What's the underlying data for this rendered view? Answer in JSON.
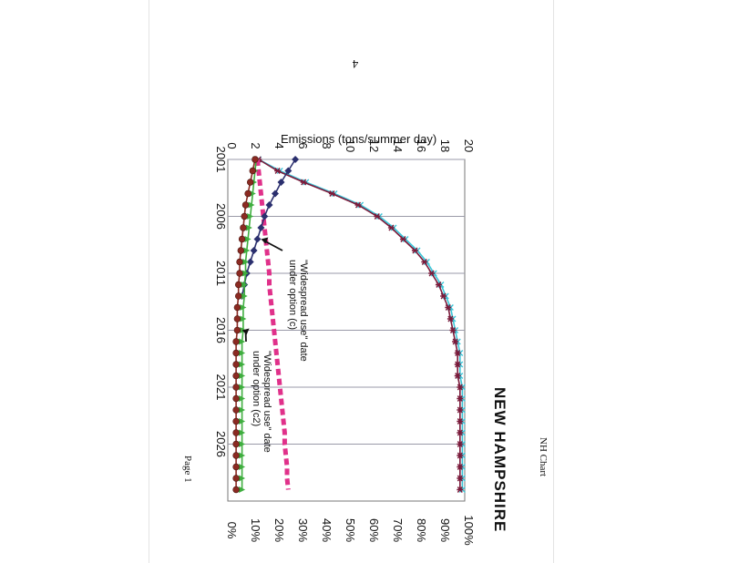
{
  "page": {
    "page_number": "4",
    "header_text": "NH Chart",
    "footer_text": "Page 1"
  },
  "chart_data": {
    "type": "line",
    "title": "NEW HAMPSHIRE",
    "ylabel": "Emissions (tons/summer day)",
    "xlabel": "",
    "x_ticks": [
      "2001",
      "2006",
      "2011",
      "2016",
      "2021",
      "2026"
    ],
    "xlim": [
      2001,
      2031
    ],
    "ylim": [
      0,
      20
    ],
    "y_ticks": [
      "0",
      "2",
      "4",
      "6",
      "8",
      "10",
      "12",
      "14",
      "16",
      "18",
      "20"
    ],
    "y2lim": [
      0,
      100
    ],
    "y2_ticks": [
      "0%",
      "10%",
      "20%",
      "30%",
      "40%",
      "50%",
      "60%",
      "70%",
      "80%",
      "90%",
      "100%"
    ],
    "grid": "vertical lines at x ticks",
    "colors": {
      "penetration_cyan": "#38c6d8",
      "penetration_dark": "#7a1a3a",
      "magenta": "#e0318a",
      "navy": "#2b2f6e",
      "green": "#3fae3f",
      "brown": "#8b2a22"
    },
    "series": [
      {
        "axis": "right",
        "color_key": "penetration_cyan",
        "marker": "x",
        "x": [
          2001,
          2002,
          2003,
          2004,
          2005,
          2006,
          2007,
          2008,
          2009,
          2010,
          2011,
          2012,
          2013,
          2014,
          2015,
          2016,
          2017,
          2018,
          2019,
          2020,
          2021,
          2022,
          2023,
          2024,
          2025,
          2026,
          2027,
          2028,
          2029,
          2030
        ],
        "values": [
          13,
          22,
          33,
          45,
          56,
          64,
          70,
          75,
          80,
          84,
          87,
          90,
          92,
          94,
          95,
          96,
          97,
          98,
          98,
          98,
          99,
          99,
          99,
          99,
          99,
          99,
          99,
          99,
          99,
          99
        ]
      },
      {
        "axis": "right",
        "color_key": "penetration_dark",
        "marker": "asterisk",
        "x": [
          2001,
          2002,
          2003,
          2004,
          2005,
          2006,
          2007,
          2008,
          2009,
          2010,
          2011,
          2012,
          2013,
          2014,
          2015,
          2016,
          2017,
          2018,
          2019,
          2020,
          2021,
          2022,
          2023,
          2024,
          2025,
          2026,
          2027,
          2028,
          2029,
          2030
        ],
        "values": [
          13,
          21,
          32,
          44,
          55,
          63,
          69,
          74,
          79,
          83,
          86,
          89,
          91,
          93,
          94,
          95,
          96,
          97,
          97,
          97,
          98,
          98,
          98,
          98,
          98,
          98,
          98,
          98,
          98,
          98
        ]
      },
      {
        "axis": "left",
        "color_key": "magenta",
        "marker": "square",
        "style": "thick-dashed",
        "x": [
          2001,
          2002,
          2003,
          2004,
          2005,
          2006,
          2007,
          2008,
          2009,
          2010,
          2011,
          2012,
          2013,
          2014,
          2015,
          2016,
          2017,
          2018,
          2019,
          2020,
          2021,
          2022,
          2023,
          2024,
          2025,
          2026,
          2027,
          2028,
          2029,
          2030
        ],
        "values": [
          2.5,
          2.6,
          2.7,
          2.8,
          2.9,
          3.0,
          3.1,
          3.2,
          3.3,
          3.4,
          3.5,
          3.5,
          3.6,
          3.7,
          3.8,
          3.9,
          4.0,
          4.1,
          4.2,
          4.3,
          4.4,
          4.5,
          4.6,
          4.7,
          4.8,
          4.8,
          4.9,
          5.0,
          5.0,
          5.1
        ]
      },
      {
        "axis": "left",
        "color_key": "navy",
        "marker": "diamond",
        "x": [
          2001,
          2002,
          2003,
          2004,
          2005,
          2006,
          2007,
          2008,
          2009,
          2010,
          2011,
          2012,
          2013
        ],
        "values": [
          5.7,
          5.1,
          4.5,
          4.0,
          3.5,
          3.1,
          2.8,
          2.5,
          2.2,
          1.9,
          1.6,
          1.4,
          1.2
        ]
      },
      {
        "axis": "left",
        "color_key": "green",
        "marker": "triangle",
        "x": [
          2001,
          2002,
          2003,
          2004,
          2005,
          2006,
          2007,
          2008,
          2009,
          2010,
          2011,
          2012,
          2013,
          2014,
          2015,
          2016,
          2017,
          2018,
          2019,
          2020,
          2021,
          2022,
          2023,
          2024,
          2025,
          2026,
          2027,
          2028,
          2029,
          2030
        ],
        "values": [
          2.4,
          2.3,
          2.2,
          2.1,
          2.0,
          1.9,
          1.8,
          1.7,
          1.6,
          1.5,
          1.5,
          1.4,
          1.4,
          1.3,
          1.3,
          1.3,
          1.2,
          1.2,
          1.2,
          1.2,
          1.2,
          1.2,
          1.2,
          1.2,
          1.2,
          1.2,
          1.2,
          1.2,
          1.2,
          1.2
        ]
      },
      {
        "axis": "left",
        "color_key": "brown",
        "marker": "circle",
        "x": [
          2001,
          2002,
          2003,
          2004,
          2005,
          2006,
          2007,
          2008,
          2009,
          2010,
          2011,
          2012,
          2013,
          2014,
          2015,
          2016,
          2017,
          2018,
          2019,
          2020,
          2021,
          2022,
          2023,
          2024,
          2025,
          2026,
          2027,
          2028,
          2029,
          2030
        ],
        "values": [
          2.3,
          2.1,
          1.9,
          1.7,
          1.5,
          1.4,
          1.3,
          1.2,
          1.1,
          1.0,
          1.0,
          0.9,
          0.9,
          0.8,
          0.8,
          0.8,
          0.7,
          0.7,
          0.7,
          0.7,
          0.7,
          0.7,
          0.7,
          0.7,
          0.7,
          0.7,
          0.7,
          0.7,
          0.7,
          0.7
        ]
      }
    ],
    "annotations": [
      {
        "lines": [
          "\"Widespread use\" date",
          "under option (c)"
        ],
        "x": 2008,
        "y": 2.8
      },
      {
        "lines": [
          "\"Widespread use\" date",
          "under option (c2)"
        ],
        "x": 2016,
        "y": 1.2
      }
    ]
  }
}
